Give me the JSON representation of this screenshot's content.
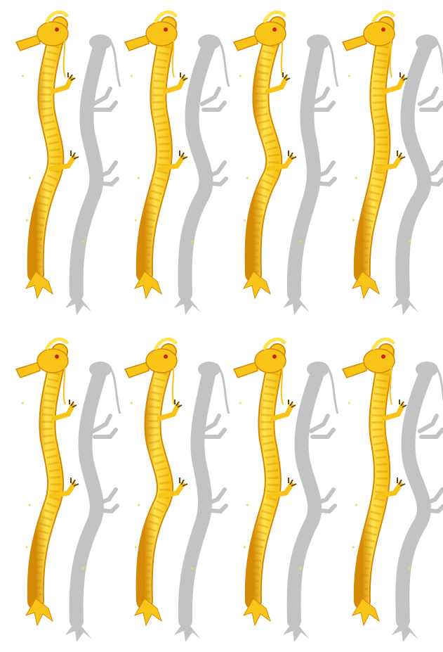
{
  "sprite_sheet": {
    "subject": "golden-dragon",
    "rows": 2,
    "columns": 4,
    "colors": {
      "background": "#ffffff",
      "body_light": "#ffe34d",
      "body_mid": "#f7c417",
      "body_dark": "#d48a06",
      "shadow": "#b9b9b9",
      "claw": "#6a4410",
      "eye": "#c8260f",
      "sparkle": "#f3d66a"
    },
    "frames": [
      {
        "id": "frame-1",
        "row": 1,
        "column": 1
      },
      {
        "id": "frame-2",
        "row": 1,
        "column": 2
      },
      {
        "id": "frame-3",
        "row": 1,
        "column": 3
      },
      {
        "id": "frame-4",
        "row": 1,
        "column": 4
      },
      {
        "id": "frame-5",
        "row": 2,
        "column": 1
      },
      {
        "id": "frame-6",
        "row": 2,
        "column": 2
      },
      {
        "id": "frame-7",
        "row": 2,
        "column": 3
      },
      {
        "id": "frame-8",
        "row": 2,
        "column": 4
      }
    ]
  }
}
